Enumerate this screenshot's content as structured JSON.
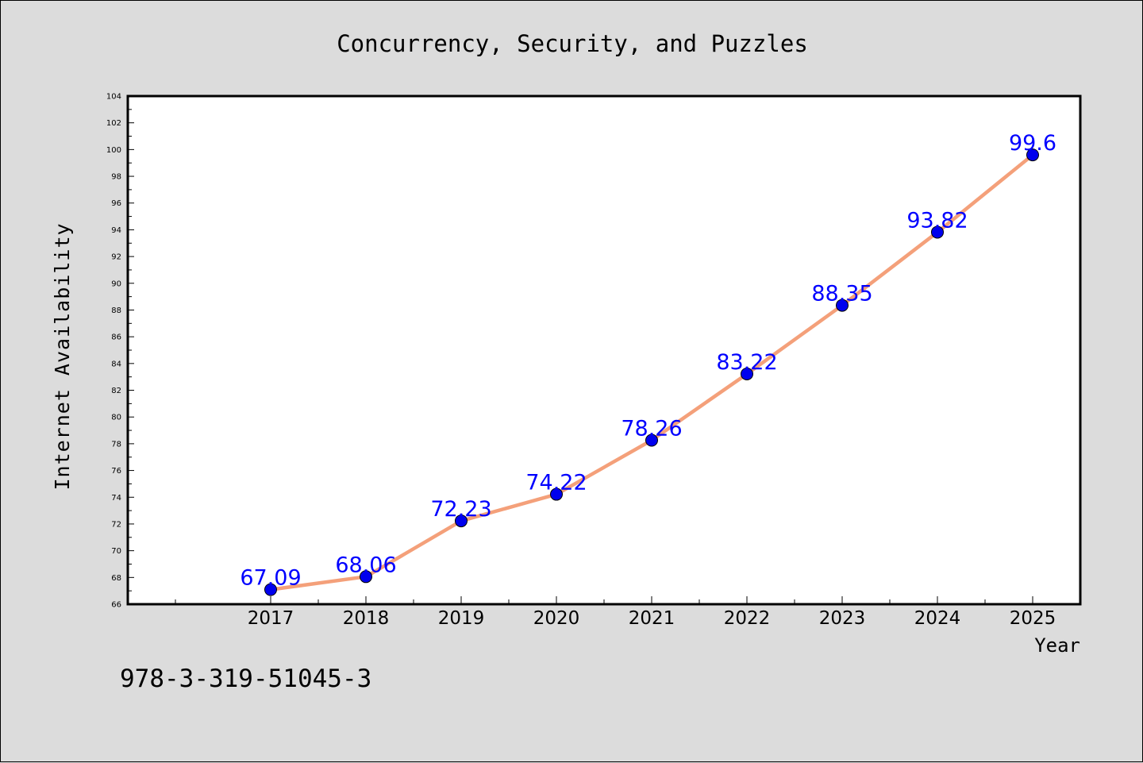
{
  "footer_text": "978-3-319-51045-3",
  "chart_data": {
    "type": "line",
    "title": "Concurrency, Security, and Puzzles",
    "xlabel": "Year",
    "ylabel": "Internet Availability",
    "categories": [
      "2017",
      "2018",
      "2019",
      "2020",
      "2021",
      "2022",
      "2023",
      "2024",
      "2025"
    ],
    "series": [
      {
        "values": [
          67.09,
          68.06,
          72.23,
          74.22,
          78.26,
          83.22,
          88.35,
          93.82,
          99.6
        ],
        "data_labels": [
          "67.09",
          "68.06",
          "72.23",
          "74.22",
          "78.26",
          "83.22",
          "88.35",
          "93.82",
          "99.6"
        ],
        "line_color": "#f4a07a",
        "marker_color": "#0000ee",
        "label_color": "#0000ff"
      }
    ],
    "ylim": [
      66,
      104
    ],
    "y_ticks": [
      "66",
      "68",
      "70",
      "72",
      "74",
      "76",
      "78",
      "80",
      "82",
      "84",
      "86",
      "88",
      "90",
      "92",
      "94",
      "96",
      "98",
      "100",
      "102",
      "104"
    ],
    "grid": false,
    "legend": "none",
    "background_color": "#dcdcdc",
    "plot_background": "#ffffff"
  }
}
